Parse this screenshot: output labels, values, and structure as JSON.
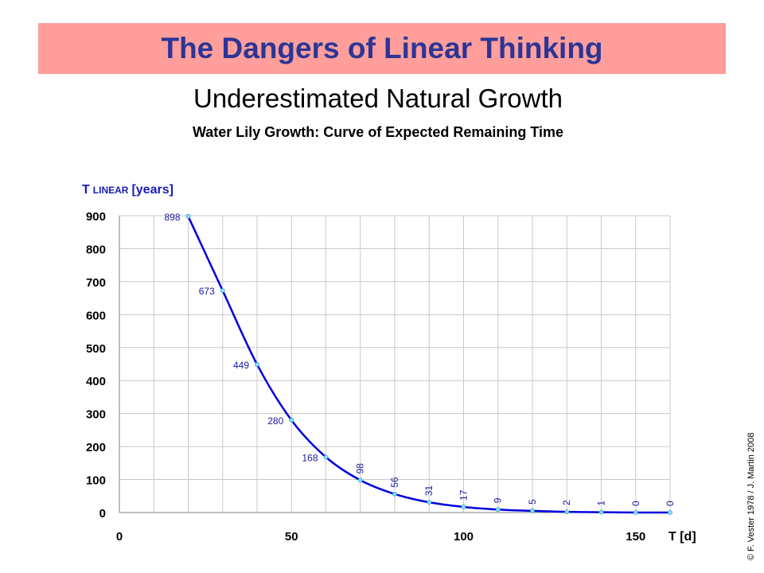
{
  "header": {
    "title": "The Dangers of Linear Thinking",
    "subtitle": "Underestimated Natural Growth",
    "caption": "Water Lily Growth:  Curve of Expected Remaining Time"
  },
  "copyright": "© F. Vester 1978 / J. Martin 2008",
  "colors": {
    "banner_bg": "#ff9e9b",
    "title_text": "#2b3596",
    "axis_label": "#1a1ab8",
    "line": "#0000e0",
    "marker": "#8fe0ff",
    "data_label": "#1a1aa0"
  },
  "chart_data": {
    "type": "line",
    "title": "Water Lily Growth:  Curve of Expected Remaining Time",
    "ylabel_main": "T",
    "ylabel_sub": "LINEAR",
    "ylabel_unit": "[years]",
    "xlabel": "T [d]",
    "xlim": [
      0,
      160
    ],
    "ylim": [
      0,
      900
    ],
    "x_ticks": [
      0,
      50,
      100,
      150
    ],
    "y_ticks": [
      0,
      100,
      200,
      300,
      400,
      500,
      600,
      700,
      800,
      900
    ],
    "grid": true,
    "x": [
      20,
      30,
      40,
      50,
      60,
      70,
      80,
      90,
      100,
      110,
      120,
      130,
      140,
      150,
      160
    ],
    "values": [
      898,
      673,
      449,
      280,
      168,
      98,
      56,
      31,
      17,
      9,
      5,
      2,
      1,
      0,
      0
    ],
    "labels": [
      "898",
      "673",
      "449",
      "280",
      "168",
      "98",
      "56",
      "31",
      "17",
      "9",
      "5",
      "2",
      "1",
      "0",
      "0"
    ]
  }
}
